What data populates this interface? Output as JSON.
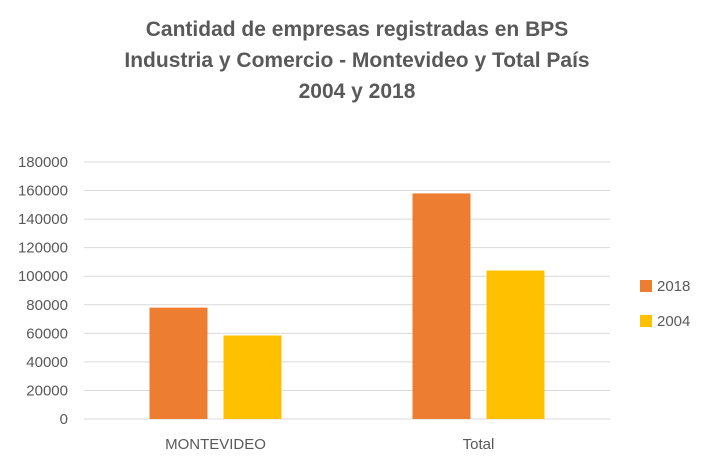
{
  "chart_data": {
    "type": "bar",
    "title_lines": [
      "Cantidad de empresas registradas en BPS",
      "Industria y Comercio - Montevideo y Total País",
      "2004 y 2018"
    ],
    "categories": [
      "MONTEVIDEO",
      "Total"
    ],
    "series": [
      {
        "name": "2018",
        "color": "#ED7D31",
        "values": [
          78000,
          158000
        ]
      },
      {
        "name": "2004",
        "color": "#FFC000",
        "values": [
          58500,
          104000
        ]
      }
    ],
    "ylim": [
      0,
      180000
    ],
    "yticks": [
      "0",
      "20000",
      "40000",
      "60000",
      "80000",
      "100000",
      "120000",
      "140000",
      "160000",
      "180000"
    ],
    "xlabel": "",
    "ylabel": "",
    "grid": true,
    "legend_position": "right",
    "gridline_color": "#D9D9D9",
    "text_color": "#595959"
  }
}
